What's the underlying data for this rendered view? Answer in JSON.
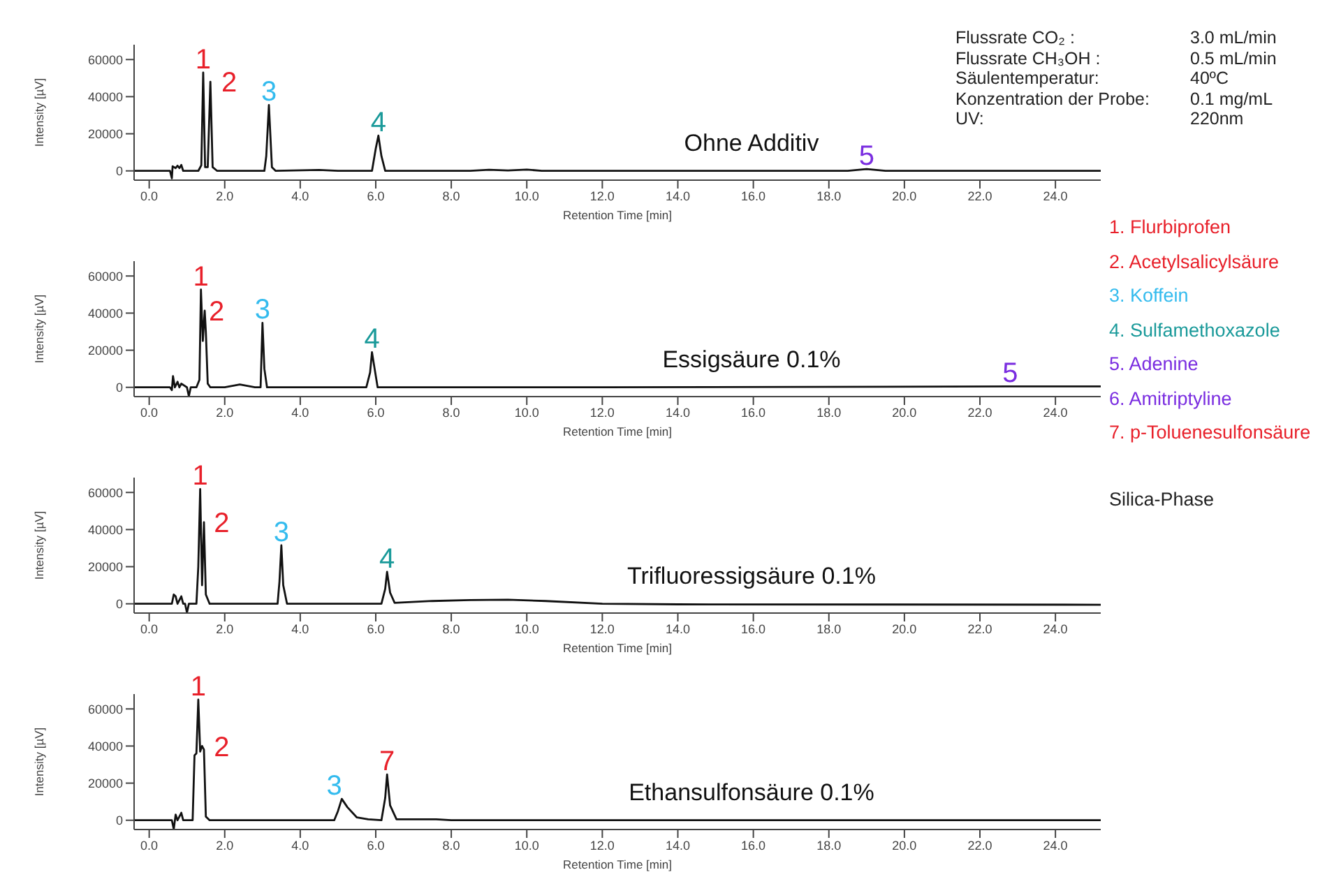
{
  "chart_data": [
    {
      "type": "line",
      "title": "Ohne Additiv",
      "xlabel": "Retention Time [min]",
      "ylabel": "Intensity [µV]",
      "xlim": [
        -0.4,
        25.2
      ],
      "ylim": [
        -5000,
        68000
      ],
      "xticks": [
        {
          "value": 0,
          "label": "0.0"
        },
        {
          "value": 2,
          "label": "2.0"
        },
        {
          "value": 4,
          "label": "4.0"
        },
        {
          "value": 6,
          "label": "6.0"
        },
        {
          "value": 8,
          "label": "8.0"
        },
        {
          "value": 10,
          "label": "10.0"
        },
        {
          "value": 12,
          "label": "12.0"
        },
        {
          "value": 14,
          "label": "14.0"
        },
        {
          "value": 16,
          "label": "16.0"
        },
        {
          "value": 18,
          "label": "18.0"
        },
        {
          "value": 20,
          "label": "20.0"
        },
        {
          "value": 22,
          "label": "22.0"
        },
        {
          "value": 24,
          "label": "24.0"
        }
      ],
      "yticks": [
        0,
        20000,
        40000,
        60000
      ],
      "line_style": "solid",
      "series": [
        {
          "color": "#111111",
          "x": [
            -0.4,
            0.55,
            0.6,
            0.62,
            0.7,
            0.75,
            0.8,
            0.85,
            0.9,
            1.3,
            1.38,
            1.43,
            1.48,
            1.55,
            1.62,
            1.68,
            1.8,
            3.05,
            3.1,
            3.17,
            3.25,
            3.35,
            4.5,
            5.0,
            5.9,
            6.0,
            6.07,
            6.15,
            6.25,
            8.5,
            9.0,
            9.5,
            10.0,
            10.4,
            18.5,
            19.0,
            19.5,
            25.2
          ],
          "values": [
            0,
            0,
            -4000,
            2500,
            1500,
            2800,
            1500,
            3200,
            0,
            0,
            3000,
            53000,
            2000,
            2000,
            48000,
            2000,
            0,
            0,
            8000,
            35500,
            2000,
            0,
            500,
            0,
            0,
            12000,
            19000,
            8000,
            0,
            0,
            600,
            200,
            700,
            0,
            0,
            1000,
            0,
            0
          ]
        }
      ],
      "annotations": [
        {
          "text": "1",
          "x": 1.43,
          "y": 53000
        },
        {
          "text": "2",
          "x": 1.8,
          "y": 48000
        },
        {
          "text": "3",
          "x": 3.17,
          "y": 35500
        },
        {
          "text": "4",
          "x": 6.07,
          "y": 19000
        },
        {
          "text": "5",
          "x": 19.0,
          "y": 1000
        }
      ]
    },
    {
      "type": "line",
      "title": "Essigsäure 0.1%",
      "xlabel": "Retention Time [min]",
      "ylabel": "Intensity [µV]",
      "xlim": [
        -0.4,
        25.2
      ],
      "ylim": [
        -5000,
        68000
      ],
      "xticks": [
        {
          "value": 0,
          "label": "0.0"
        },
        {
          "value": 2,
          "label": "2.0"
        },
        {
          "value": 4,
          "label": "4.0"
        },
        {
          "value": 6,
          "label": "6.0"
        },
        {
          "value": 8,
          "label": "8.0"
        },
        {
          "value": 10,
          "label": "10.0"
        },
        {
          "value": 12,
          "label": "12.0"
        },
        {
          "value": 14,
          "label": "14.0"
        },
        {
          "value": 16,
          "label": "16.0"
        },
        {
          "value": 18,
          "label": "18.0"
        },
        {
          "value": 20,
          "label": "20.0"
        },
        {
          "value": 22,
          "label": "22.0"
        },
        {
          "value": 24,
          "label": "24.0"
        }
      ],
      "yticks": [
        0,
        20000,
        40000,
        60000
      ],
      "line_style": "solid",
      "series": [
        {
          "color": "#111111",
          "x": [
            -0.4,
            0.55,
            0.6,
            0.63,
            0.68,
            0.75,
            0.8,
            0.85,
            1.0,
            1.05,
            1.1,
            1.25,
            1.33,
            1.37,
            1.42,
            1.47,
            1.5,
            1.55,
            1.62,
            2.0,
            2.4,
            2.8,
            2.95,
            3.0,
            3.05,
            3.12,
            3.2,
            5.75,
            5.85,
            5.9,
            5.97,
            6.05,
            6.15,
            7.5,
            12.0,
            22.8,
            25.2
          ],
          "values": [
            0,
            0,
            -1500,
            6000,
            0,
            3000,
            0,
            2000,
            0,
            -4800,
            0,
            0,
            4000,
            52700,
            25000,
            41300,
            30000,
            2000,
            0,
            0,
            1500,
            0,
            0,
            34700,
            10000,
            0,
            0,
            0,
            8000,
            18900,
            10000,
            0,
            0,
            0,
            0,
            500,
            500
          ]
        }
      ],
      "annotations": [
        {
          "text": "1",
          "x": 1.37,
          "y": 52700
        },
        {
          "text": "2",
          "x": 1.47,
          "y": 41300
        },
        {
          "text": "3",
          "x": 3.0,
          "y": 34700
        },
        {
          "text": "4",
          "x": 5.9,
          "y": 18900
        },
        {
          "text": "5",
          "x": 22.8,
          "y": 500
        }
      ]
    },
    {
      "type": "line",
      "title": "Trifluoressigsäure 0.1%",
      "xlabel": "Retention Time [min]",
      "ylabel": "Intensity [µV]",
      "xlim": [
        -0.4,
        25.2
      ],
      "ylim": [
        -5000,
        68000
      ],
      "xticks": [
        {
          "value": 0,
          "label": "0.0"
        },
        {
          "value": 2,
          "label": "2.0"
        },
        {
          "value": 4,
          "label": "4.0"
        },
        {
          "value": 6,
          "label": "6.0"
        },
        {
          "value": 8,
          "label": "8.0"
        },
        {
          "value": 10,
          "label": "10.0"
        },
        {
          "value": 12,
          "label": "12.0"
        },
        {
          "value": 14,
          "label": "14.0"
        },
        {
          "value": 16,
          "label": "16.0"
        },
        {
          "value": 18,
          "label": "18.0"
        },
        {
          "value": 20,
          "label": "20.0"
        },
        {
          "value": 22,
          "label": "22.0"
        },
        {
          "value": 24,
          "label": "24.0"
        }
      ],
      "yticks": [
        0,
        20000,
        40000,
        60000
      ],
      "line_style": "solid",
      "series": [
        {
          "color": "#111111",
          "x": [
            -0.4,
            0.6,
            0.65,
            0.7,
            0.75,
            0.85,
            0.9,
            0.95,
            1.0,
            1.05,
            1.1,
            1.25,
            1.3,
            1.35,
            1.4,
            1.45,
            1.5,
            1.6,
            3.4,
            3.45,
            3.5,
            3.55,
            3.65,
            6.15,
            6.25,
            6.3,
            6.38,
            6.5,
            7.5,
            8.5,
            9.5,
            10.5,
            12.0,
            14.0,
            25.2
          ],
          "values": [
            0,
            0,
            5000,
            4000,
            0,
            4000,
            0,
            0,
            -4800,
            0,
            0,
            0,
            20000,
            61800,
            10000,
            44000,
            5000,
            0,
            0,
            12000,
            31500,
            10000,
            0,
            0,
            8000,
            17200,
            6000,
            500,
            1500,
            2000,
            2200,
            1500,
            0,
            -300,
            -500
          ]
        }
      ],
      "annotations": [
        {
          "text": "1",
          "x": 1.35,
          "y": 61800
        },
        {
          "text": "2",
          "x": 1.6,
          "y": 44000
        },
        {
          "text": "3",
          "x": 3.5,
          "y": 31500
        },
        {
          "text": "4",
          "x": 6.3,
          "y": 17200
        }
      ]
    },
    {
      "type": "line",
      "title": "Ethansulfonsäure 0.1%",
      "xlabel": "Retention Time [min]",
      "ylabel": "Intensity [µV]",
      "xlim": [
        -0.4,
        25.2
      ],
      "ylim": [
        -5000,
        68000
      ],
      "xticks": [
        {
          "value": 0,
          "label": "0.0"
        },
        {
          "value": 2,
          "label": "2.0"
        },
        {
          "value": 4,
          "label": "4.0"
        },
        {
          "value": 6,
          "label": "6.0"
        },
        {
          "value": 8,
          "label": "8.0"
        },
        {
          "value": 10,
          "label": "10.0"
        },
        {
          "value": 12,
          "label": "12.0"
        },
        {
          "value": 14,
          "label": "14.0"
        },
        {
          "value": 16,
          "label": "16.0"
        },
        {
          "value": 18,
          "label": "18.0"
        },
        {
          "value": 20,
          "label": "20.0"
        },
        {
          "value": 22,
          "label": "22.0"
        },
        {
          "value": 24,
          "label": "24.0"
        }
      ],
      "yticks": [
        0,
        20000,
        40000,
        60000
      ],
      "line_style": "solid",
      "series": [
        {
          "color": "#111111",
          "x": [
            -0.4,
            0.6,
            0.65,
            0.7,
            0.75,
            0.85,
            0.9,
            0.95,
            1.15,
            1.2,
            1.25,
            1.3,
            1.35,
            1.4,
            1.45,
            1.5,
            1.6,
            4.9,
            5.0,
            5.1,
            5.25,
            5.5,
            5.8,
            6.15,
            6.25,
            6.3,
            6.38,
            6.55,
            7.6,
            8.0,
            25.2
          ],
          "values": [
            0,
            0,
            -4800,
            3000,
            0,
            4000,
            0,
            0,
            0,
            35000,
            36000,
            65000,
            37000,
            40000,
            38000,
            2000,
            0,
            0,
            5000,
            11500,
            7000,
            1500,
            500,
            0,
            12000,
            24700,
            8000,
            500,
            500,
            0,
            0
          ]
        }
      ],
      "annotations": [
        {
          "text": "1",
          "x": 1.3,
          "y": 65000
        },
        {
          "text": "2",
          "x": 1.6,
          "y": 40000
        },
        {
          "text": "3",
          "x": 4.9,
          "y": 11500
        },
        {
          "text": "7",
          "x": 6.3,
          "y": 24700
        }
      ]
    },
    {
      "type": "other",
      "annotations": [
        "Flussrate CO₂ :",
        "3.0 mL/min",
        "Flussrate CH₃OH :",
        "0.5 mL/min",
        "Säulentemperatur:",
        "40ºC",
        "Konzentration der Probe:",
        "0.1 mg/mL",
        "UV:",
        "220nm",
        "Silica-Phase"
      ],
      "categories": [
        "1. Flurbiprofen",
        "2. Acetylsalicylsäure",
        "3. Koffein",
        "4. Sulfamethoxazole",
        "5. Adenine",
        "6. Amitriptyline",
        "7. p-Toluenesulfonsäure"
      ],
      "colors": [
        "#e8202a",
        "#e8202a",
        "#33bbee",
        "#1a9a9a",
        "#7a2de0",
        "#7a2de0",
        "#e8202a"
      ]
    }
  ]
}
